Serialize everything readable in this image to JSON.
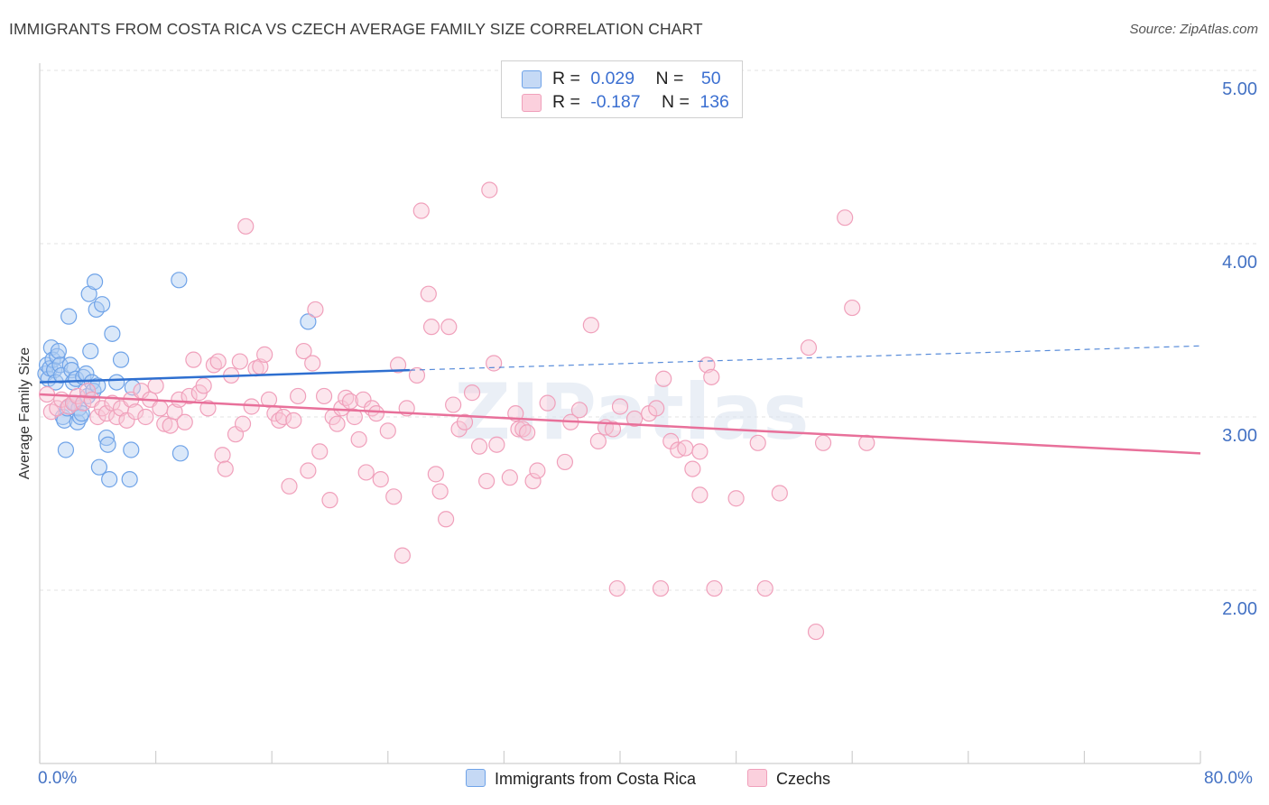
{
  "title": "IMMIGRANTS FROM COSTA RICA VS CZECH AVERAGE FAMILY SIZE CORRELATION CHART",
  "source": "Source: ZipAtlas.com",
  "watermark": "ZIPatlas",
  "legend": {
    "r_label": "R =",
    "n_label": "N =",
    "series1": {
      "r": "0.029",
      "n": "50"
    },
    "series2": {
      "r": "-0.187",
      "n": "136"
    }
  },
  "colors": {
    "blue": "#6fa3e8",
    "blue_fill": "#aecbf2",
    "blue_line": "#2e6fd0",
    "pink": "#f0a0bb",
    "pink_fill": "#f8c7d6",
    "pink_line": "#e8709a",
    "accent": "#4472c4"
  },
  "chart_data": {
    "type": "scatter",
    "title": "IMMIGRANTS FROM COSTA RICA VS CZECH AVERAGE FAMILY SIZE CORRELATION CHART",
    "xlabel": "",
    "ylabel": "Average Family Size",
    "xlim": [
      0,
      80
    ],
    "ylim": [
      1.0,
      5.15
    ],
    "x_tick_labels": [
      "0.0%",
      "80.0%"
    ],
    "y_ticks": [
      2.0,
      3.0,
      4.0,
      5.0
    ],
    "y_tick_labels": [
      "2.00",
      "3.00",
      "4.00",
      "5.00"
    ],
    "grid": true,
    "series": [
      {
        "name": "Immigrants from Costa Rica",
        "r": 0.029,
        "n": 50,
        "trend": {
          "x0": 0,
          "y0": 3.2,
          "x1": 25.5,
          "y1": 3.27,
          "dash_x1": 80,
          "dash_y1": 3.41
        },
        "points": [
          [
            0.4,
            3.25
          ],
          [
            0.5,
            3.3
          ],
          [
            0.6,
            3.22
          ],
          [
            0.7,
            3.28
          ],
          [
            0.8,
            3.4
          ],
          [
            0.9,
            3.33
          ],
          [
            1.0,
            3.27
          ],
          [
            1.1,
            3.2
          ],
          [
            1.2,
            3.35
          ],
          [
            1.3,
            3.38
          ],
          [
            1.4,
            3.3
          ],
          [
            1.5,
            3.24
          ],
          [
            1.6,
            3.0
          ],
          [
            1.7,
            2.98
          ],
          [
            1.8,
            2.81
          ],
          [
            1.9,
            3.05
          ],
          [
            2.0,
            3.58
          ],
          [
            2.1,
            3.3
          ],
          [
            2.2,
            3.27
          ],
          [
            2.3,
            3.2
          ],
          [
            2.4,
            3.08
          ],
          [
            2.5,
            3.22
          ],
          [
            2.6,
            2.97
          ],
          [
            2.7,
            3.05
          ],
          [
            2.8,
            3.0
          ],
          [
            2.9,
            3.02
          ],
          [
            3.0,
            3.23
          ],
          [
            3.2,
            3.25
          ],
          [
            3.3,
            3.12
          ],
          [
            3.4,
            3.71
          ],
          [
            3.5,
            3.38
          ],
          [
            3.6,
            3.2
          ],
          [
            3.7,
            3.15
          ],
          [
            3.8,
            3.78
          ],
          [
            3.9,
            3.62
          ],
          [
            4.0,
            3.18
          ],
          [
            4.1,
            2.71
          ],
          [
            4.3,
            3.65
          ],
          [
            4.6,
            2.88
          ],
          [
            4.7,
            2.84
          ],
          [
            4.8,
            2.64
          ],
          [
            5.0,
            3.48
          ],
          [
            5.3,
            3.2
          ],
          [
            5.6,
            3.33
          ],
          [
            6.2,
            2.64
          ],
          [
            6.3,
            2.81
          ],
          [
            6.4,
            3.17
          ],
          [
            9.6,
            3.79
          ],
          [
            9.7,
            2.79
          ],
          [
            18.5,
            3.55
          ]
        ]
      },
      {
        "name": "Czechs",
        "r": -0.187,
        "n": 136,
        "trend": {
          "x0": 0,
          "y0": 3.13,
          "x1": 80,
          "y1": 2.79
        },
        "points": [
          [
            0.5,
            3.13
          ],
          [
            0.8,
            3.03
          ],
          [
            1.2,
            3.05
          ],
          [
            1.5,
            3.1
          ],
          [
            2.0,
            3.06
          ],
          [
            2.3,
            3.08
          ],
          [
            2.6,
            3.12
          ],
          [
            3.0,
            3.08
          ],
          [
            3.3,
            3.15
          ],
          [
            3.6,
            3.1
          ],
          [
            4.0,
            3.0
          ],
          [
            4.3,
            3.05
          ],
          [
            4.6,
            3.02
          ],
          [
            5.0,
            3.08
          ],
          [
            5.3,
            3.0
          ],
          [
            5.6,
            3.05
          ],
          [
            6.0,
            2.98
          ],
          [
            6.3,
            3.1
          ],
          [
            6.6,
            3.03
          ],
          [
            7.0,
            3.15
          ],
          [
            7.3,
            3.0
          ],
          [
            7.6,
            3.1
          ],
          [
            8.0,
            3.18
          ],
          [
            8.3,
            3.05
          ],
          [
            8.6,
            2.96
          ],
          [
            9.0,
            2.95
          ],
          [
            9.3,
            3.03
          ],
          [
            9.6,
            3.1
          ],
          [
            10.0,
            2.97
          ],
          [
            10.3,
            3.12
          ],
          [
            10.6,
            3.33
          ],
          [
            11.0,
            3.14
          ],
          [
            11.3,
            3.18
          ],
          [
            11.6,
            3.05
          ],
          [
            12.0,
            3.3
          ],
          [
            12.3,
            3.32
          ],
          [
            12.6,
            2.78
          ],
          [
            12.8,
            2.7
          ],
          [
            13.2,
            3.24
          ],
          [
            13.5,
            2.9
          ],
          [
            13.8,
            3.32
          ],
          [
            14.0,
            2.96
          ],
          [
            14.2,
            4.1
          ],
          [
            14.6,
            3.06
          ],
          [
            14.9,
            3.28
          ],
          [
            15.2,
            3.29
          ],
          [
            15.5,
            3.36
          ],
          [
            15.8,
            3.1
          ],
          [
            16.2,
            3.02
          ],
          [
            16.5,
            2.98
          ],
          [
            16.8,
            3.0
          ],
          [
            17.2,
            2.6
          ],
          [
            17.5,
            2.98
          ],
          [
            17.8,
            3.12
          ],
          [
            18.2,
            3.38
          ],
          [
            18.5,
            2.69
          ],
          [
            18.8,
            3.31
          ],
          [
            19.0,
            3.62
          ],
          [
            19.3,
            2.8
          ],
          [
            19.6,
            3.12
          ],
          [
            20.0,
            2.52
          ],
          [
            20.2,
            3.0
          ],
          [
            20.5,
            2.96
          ],
          [
            20.8,
            3.05
          ],
          [
            21.1,
            3.11
          ],
          [
            21.4,
            3.09
          ],
          [
            21.7,
            3.0
          ],
          [
            22.0,
            2.87
          ],
          [
            22.3,
            3.1
          ],
          [
            22.5,
            2.68
          ],
          [
            22.9,
            3.05
          ],
          [
            23.2,
            3.02
          ],
          [
            23.5,
            2.64
          ],
          [
            24.0,
            2.92
          ],
          [
            24.4,
            2.54
          ],
          [
            24.7,
            3.3
          ],
          [
            25.0,
            2.2
          ],
          [
            25.3,
            3.05
          ],
          [
            26.0,
            3.24
          ],
          [
            26.3,
            4.19
          ],
          [
            26.8,
            3.71
          ],
          [
            27.0,
            3.52
          ],
          [
            27.3,
            2.67
          ],
          [
            27.6,
            2.57
          ],
          [
            28.0,
            2.41
          ],
          [
            28.2,
            3.52
          ],
          [
            28.5,
            3.07
          ],
          [
            28.9,
            2.93
          ],
          [
            29.3,
            2.97
          ],
          [
            29.8,
            3.14
          ],
          [
            30.3,
            2.83
          ],
          [
            30.8,
            2.63
          ],
          [
            31.0,
            4.31
          ],
          [
            31.3,
            3.31
          ],
          [
            31.5,
            2.84
          ],
          [
            32.4,
            2.65
          ],
          [
            32.8,
            3.02
          ],
          [
            33.0,
            2.93
          ],
          [
            33.3,
            2.93
          ],
          [
            33.6,
            2.91
          ],
          [
            34.0,
            2.63
          ],
          [
            34.3,
            2.69
          ],
          [
            35.0,
            3.08
          ],
          [
            36.2,
            2.74
          ],
          [
            36.6,
            2.97
          ],
          [
            37.2,
            3.04
          ],
          [
            38.0,
            3.53
          ],
          [
            38.5,
            2.86
          ],
          [
            39.0,
            2.94
          ],
          [
            39.5,
            2.93
          ],
          [
            40.0,
            3.06
          ],
          [
            41.0,
            2.99
          ],
          [
            42.0,
            3.02
          ],
          [
            42.5,
            3.05
          ],
          [
            43.0,
            3.22
          ],
          [
            43.5,
            2.86
          ],
          [
            44.0,
            2.81
          ],
          [
            44.5,
            2.82
          ],
          [
            45.0,
            2.7
          ],
          [
            45.5,
            2.55
          ],
          [
            46.0,
            3.3
          ],
          [
            46.3,
            3.23
          ],
          [
            48.0,
            2.53
          ],
          [
            49.5,
            2.85
          ],
          [
            51.0,
            2.56
          ],
          [
            53.0,
            3.4
          ],
          [
            54.0,
            2.85
          ],
          [
            55.5,
            4.15
          ],
          [
            56.0,
            3.63
          ],
          [
            57.0,
            2.85
          ],
          [
            46.5,
            2.01
          ],
          [
            50.0,
            2.01
          ],
          [
            53.5,
            1.76
          ],
          [
            45.5,
            2.8
          ],
          [
            39.8,
            2.01
          ],
          [
            42.8,
            2.01
          ]
        ]
      }
    ]
  },
  "bottom_legend": {
    "series1": "Immigrants from Costa Rica",
    "series2": "Czechs"
  },
  "x_axis": {
    "left_label": "0.0%",
    "right_label": "80.0%"
  }
}
